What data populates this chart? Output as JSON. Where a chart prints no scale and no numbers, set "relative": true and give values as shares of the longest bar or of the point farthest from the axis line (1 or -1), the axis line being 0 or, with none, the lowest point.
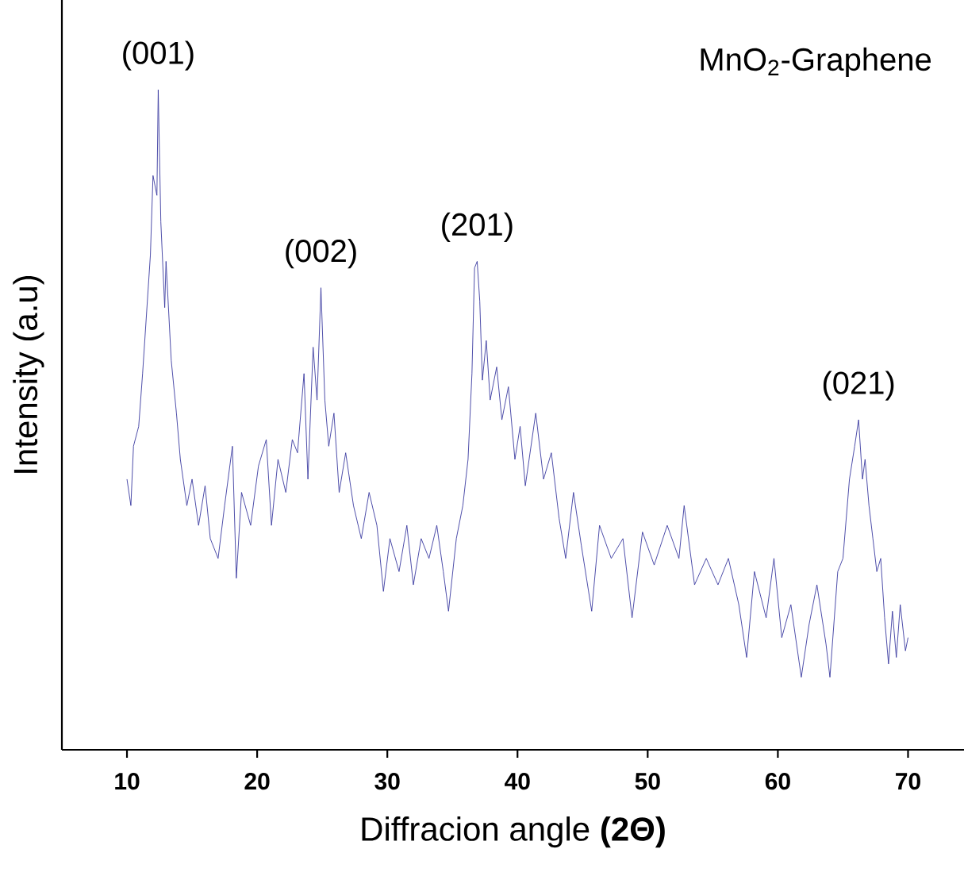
{
  "chart_data": {
    "type": "line",
    "relative": true,
    "xlabel": "Diffracion angle **(2Θ)**",
    "ylabel": "Intensity (a.u)",
    "xlim": [
      5,
      74.3
    ],
    "xticks": [
      10,
      20,
      30,
      40,
      50,
      60,
      70
    ],
    "annotations": [
      {
        "text": "(001)",
        "x": 12.4,
        "y": 1.0
      },
      {
        "text": "(002)",
        "x": 24.9,
        "y": 0.7
      },
      {
        "text": "(201)",
        "x": 36.9,
        "y": 0.74
      },
      {
        "text": "(021)",
        "x": 66.2,
        "y": 0.5
      },
      "MnO$_{2}$-Graphene"
    ],
    "series": [
      {
        "color": "#3a3aa0",
        "x": [
          10.0,
          10.3,
          10.5,
          10.9,
          11.2,
          11.5,
          11.8,
          12.0,
          12.3,
          12.4,
          12.6,
          12.9,
          13.0,
          13.4,
          13.8,
          14.1,
          14.6,
          15.0,
          15.5,
          16.0,
          16.4,
          17.0,
          17.5,
          18.1,
          18.4,
          18.8,
          19.5,
          20.1,
          20.7,
          21.1,
          21.6,
          22.2,
          22.7,
          23.1,
          23.6,
          23.9,
          24.3,
          24.6,
          24.9,
          25.2,
          25.5,
          25.9,
          26.3,
          26.8,
          27.4,
          28.0,
          28.6,
          29.2,
          29.7,
          30.2,
          30.9,
          31.5,
          32.0,
          32.6,
          33.2,
          33.8,
          34.3,
          34.7,
          35.3,
          35.8,
          36.2,
          36.5,
          36.7,
          36.9,
          37.1,
          37.3,
          37.6,
          37.9,
          38.4,
          38.8,
          39.3,
          39.8,
          40.2,
          40.6,
          41.4,
          42.0,
          42.6,
          43.2,
          43.7,
          44.3,
          44.9,
          45.7,
          46.3,
          47.2,
          48.1,
          48.8,
          49.6,
          50.5,
          51.5,
          52.4,
          52.8,
          53.6,
          54.5,
          55.4,
          56.2,
          57.0,
          57.6,
          58.2,
          59.1,
          59.7,
          60.3,
          61.0,
          61.8,
          62.4,
          63.0,
          63.7,
          64.0,
          64.6,
          65.0,
          65.5,
          65.9,
          66.2,
          66.5,
          66.7,
          67.0,
          67.3,
          67.6,
          67.9,
          68.2,
          68.5,
          68.8,
          69.1,
          69.4,
          69.8,
          70.0
        ],
        "values": [
          0.41,
          0.37,
          0.46,
          0.49,
          0.57,
          0.66,
          0.75,
          0.87,
          0.84,
          1.0,
          0.8,
          0.67,
          0.74,
          0.59,
          0.51,
          0.44,
          0.37,
          0.41,
          0.34,
          0.4,
          0.32,
          0.29,
          0.37,
          0.46,
          0.26,
          0.39,
          0.34,
          0.43,
          0.47,
          0.34,
          0.44,
          0.39,
          0.47,
          0.45,
          0.57,
          0.41,
          0.61,
          0.53,
          0.7,
          0.53,
          0.46,
          0.51,
          0.39,
          0.45,
          0.37,
          0.32,
          0.39,
          0.34,
          0.24,
          0.32,
          0.27,
          0.34,
          0.25,
          0.32,
          0.29,
          0.34,
          0.27,
          0.21,
          0.32,
          0.37,
          0.44,
          0.57,
          0.73,
          0.74,
          0.68,
          0.56,
          0.62,
          0.53,
          0.58,
          0.5,
          0.55,
          0.44,
          0.49,
          0.4,
          0.51,
          0.41,
          0.45,
          0.35,
          0.29,
          0.39,
          0.31,
          0.21,
          0.34,
          0.29,
          0.32,
          0.2,
          0.33,
          0.28,
          0.34,
          0.29,
          0.37,
          0.25,
          0.29,
          0.25,
          0.29,
          0.22,
          0.14,
          0.27,
          0.2,
          0.29,
          0.17,
          0.22,
          0.11,
          0.19,
          0.25,
          0.16,
          0.11,
          0.27,
          0.29,
          0.41,
          0.46,
          0.5,
          0.41,
          0.44,
          0.37,
          0.32,
          0.27,
          0.29,
          0.2,
          0.13,
          0.21,
          0.14,
          0.22,
          0.15,
          0.17
        ]
      }
    ]
  }
}
